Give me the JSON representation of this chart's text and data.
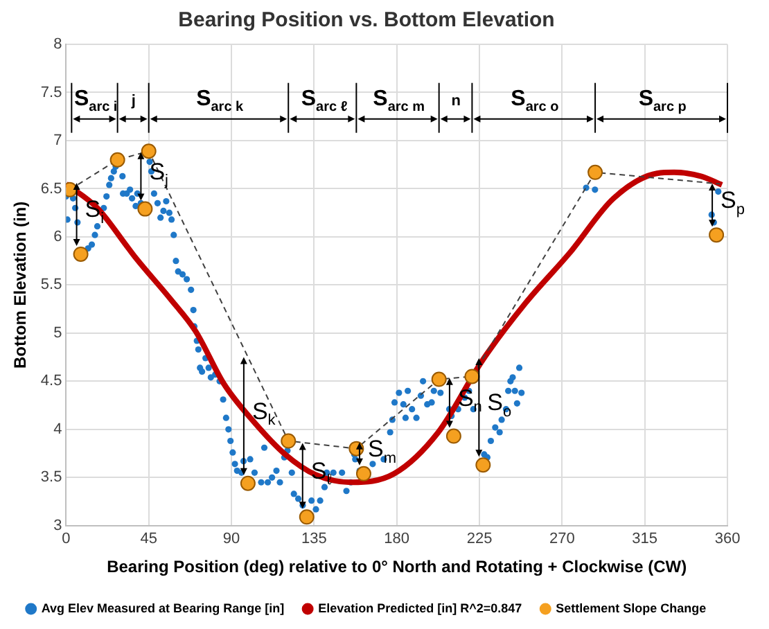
{
  "chart_data": {
    "type": "scatter",
    "title": "Bearing Position vs. Bottom Elevation",
    "xlabel": "Bearing Position (deg) relative to 0° North and Rotating + Clockwise (CW)",
    "ylabel": "Bottom Elevation (in)",
    "xlim": [
      0,
      360
    ],
    "xticks": [
      0,
      45,
      90,
      135,
      180,
      225,
      270,
      315,
      360
    ],
    "ylim": [
      3,
      8
    ],
    "yticks": [
      3,
      3.5,
      4,
      4.5,
      5,
      5.5,
      6,
      6.5,
      7,
      7.5,
      8
    ],
    "grid": true,
    "legend": "bottom",
    "series": [
      {
        "name": "Avg Elev Measured at Bearing Range [in]",
        "color": "#1f78c8",
        "marker": "circle",
        "x": [
          0,
          0.7,
          3.8,
          5,
          6.2,
          12,
          14,
          15.7,
          17,
          20.5,
          22,
          23.5,
          24.5,
          26,
          27,
          30.7,
          31,
          33,
          34.8,
          35.9,
          37.9,
          38.8,
          40.7,
          45.5,
          46.4,
          47.9,
          49.8,
          51.4,
          53,
          54.5,
          56.2,
          57.4,
          58.6,
          59.8,
          61,
          63.4,
          65.7,
          68,
          69.3,
          69.8,
          71.2,
          72,
          72.9,
          74,
          75.9,
          77.6,
          78.8,
          81.2,
          83.6,
          85.5,
          87.1,
          88.4,
          89.5,
          90.7,
          91.9,
          93.1,
          95.5,
          96.6,
          100.2,
          102.6,
          106.2,
          107.9,
          109.8,
          112.1,
          114.5,
          116.4,
          118.8,
          120.5,
          122.9,
          124,
          126.4,
          128.8,
          133.6,
          136,
          138.3,
          140.7,
          141.9,
          145.5,
          150.2,
          152.6,
          155,
          156.9,
          157.4,
          159.8,
          166.9,
          172.9,
          176.4,
          177.6,
          178.8,
          181.2,
          183.6,
          184.8,
          186,
          188.3,
          190.7,
          193.1,
          194.3,
          196.6,
          199,
          200.2,
          203.8,
          208.6,
          209.8,
          213.4,
          217,
          219.3,
          221.7,
          227.6,
          229.3,
          231.2,
          233.6,
          236,
          237.1,
          239.5,
          240.7,
          241.9,
          243.1,
          244.3,
          245.5,
          246.7,
          247.9,
          283.1,
          287.9,
          351.4,
          352.6,
          355
        ],
        "values": [
          6.42,
          6.18,
          6.4,
          6.3,
          6.15,
          5.88,
          5.92,
          6.02,
          6.11,
          6.3,
          6.42,
          6.54,
          6.61,
          6.68,
          6.73,
          6.63,
          6.45,
          6.45,
          6.49,
          6.4,
          6.32,
          6.45,
          6.35,
          6.78,
          6.68,
          6.45,
          6.35,
          6.2,
          6.27,
          6.37,
          6.25,
          6.18,
          6.02,
          5.75,
          5.64,
          5.61,
          5.56,
          5.45,
          5.24,
          5.07,
          4.92,
          4.83,
          4.64,
          4.6,
          4.74,
          4.64,
          4.54,
          4.57,
          4.5,
          4.31,
          4.12,
          4,
          3.88,
          3.76,
          3.64,
          3.57,
          3.55,
          3.67,
          3.69,
          3.55,
          3.45,
          3.81,
          3.45,
          3.5,
          3.57,
          3.45,
          3.71,
          3.78,
          3.55,
          3.33,
          3.28,
          3.21,
          3.26,
          3.17,
          3.26,
          3.4,
          3.55,
          3.55,
          3.55,
          3.36,
          3.45,
          3.74,
          3.69,
          3.57,
          3.64,
          3.69,
          3.97,
          4.1,
          4.28,
          4.38,
          4.26,
          4.12,
          4.4,
          4.21,
          4.12,
          4.35,
          4.5,
          4.26,
          4.28,
          4.4,
          4.38,
          4.21,
          4.14,
          4.21,
          4.33,
          4.4,
          4.21,
          3.74,
          3.71,
          3.88,
          4.02,
          3.97,
          4.1,
          4.21,
          4.4,
          4.5,
          4.54,
          4.4,
          4.27,
          4.64,
          4.38,
          6.51,
          6.49,
          6.23,
          6.15,
          6.47
        ]
      },
      {
        "type": "line",
        "name": "Elevation Predicted [in] R^2=0.847",
        "color": "#c00000",
        "marker": "none",
        "line_style": "solid",
        "x": [
          0,
          17,
          34,
          38,
          57,
          70.5,
          86,
          102.6,
          119.3,
          135.7,
          155,
          178.6,
          202.6,
          226.4,
          250,
          274,
          298,
          321.7,
          331,
          345.5,
          357
        ],
        "values": [
          6.55,
          6.3,
          5.88,
          5.78,
          5.35,
          5.02,
          4.47,
          4.07,
          3.74,
          3.53,
          3.45,
          3.54,
          3.97,
          4.71,
          5.31,
          5.83,
          6.4,
          6.66,
          6.67,
          6.63,
          6.54
        ]
      },
      {
        "name": "Settlement Slope Change",
        "color": "#f5a020",
        "marker": "circle",
        "x": [
          2,
          8,
          28,
          43,
          45,
          99,
          121,
          131,
          158,
          162,
          203,
          211,
          221,
          227,
          288,
          354
        ],
        "values": [
          6.49,
          5.82,
          6.8,
          6.29,
          6.89,
          3.44,
          3.88,
          3.09,
          3.8,
          3.54,
          4.52,
          3.93,
          4.55,
          3.63,
          6.67,
          6.02
        ]
      },
      {
        "type": "line",
        "color": "#404040",
        "marker": "none",
        "line_style": "dashed",
        "x": [
          2,
          28,
          45,
          121,
          158,
          203,
          221,
          288,
          356
        ],
        "values": [
          6.49,
          6.8,
          6.89,
          3.88,
          3.8,
          4.52,
          4.55,
          6.67,
          6.55
        ]
      }
    ],
    "ref_lines": [
      {
        "axis": "x",
        "value": 3,
        "color": "#000000",
        "label": "S$_{arc i}$"
      },
      {
        "axis": "x",
        "value": 28,
        "color": "#000000",
        "label": "j"
      },
      {
        "axis": "x",
        "value": 45,
        "color": "#000000",
        "label": "S$_{arc k}$"
      },
      {
        "axis": "x",
        "value": 121,
        "color": "#000000",
        "label": "S$_{arc ℓ}$"
      },
      {
        "axis": "x",
        "value": 158,
        "color": "#000000",
        "label": "S$_{arc m}$"
      },
      {
        "axis": "x",
        "value": 203,
        "color": "#000000",
        "label": "n"
      },
      {
        "axis": "x",
        "value": 221,
        "color": "#000000",
        "label": "S$_{arc o}$"
      },
      {
        "axis": "x",
        "value": 288,
        "color": "#000000",
        "label": "S$_{arc p}$"
      },
      {
        "axis": "x",
        "value": 360,
        "color": "#000000"
      }
    ],
    "annotations": [
      {
        "text": "S$_{i}$",
        "x": 8,
        "y": 5.82
      },
      {
        "text": "S$_{j}$",
        "x": 43,
        "y": 6.29
      },
      {
        "text": "S$_{k}$",
        "x": 99,
        "y": 3.44
      },
      {
        "text": "S$_{ℓ}$",
        "x": 131,
        "y": 3.09
      },
      {
        "text": "S$_{m}$",
        "x": 162,
        "y": 3.54
      },
      {
        "text": "S$_{n}$",
        "x": 211,
        "y": 3.93
      },
      {
        "text": "S$_{o}$",
        "x": 227,
        "y": 3.63
      },
      {
        "text": "S$_{p}$",
        "x": 354,
        "y": 6.02
      }
    ]
  }
}
